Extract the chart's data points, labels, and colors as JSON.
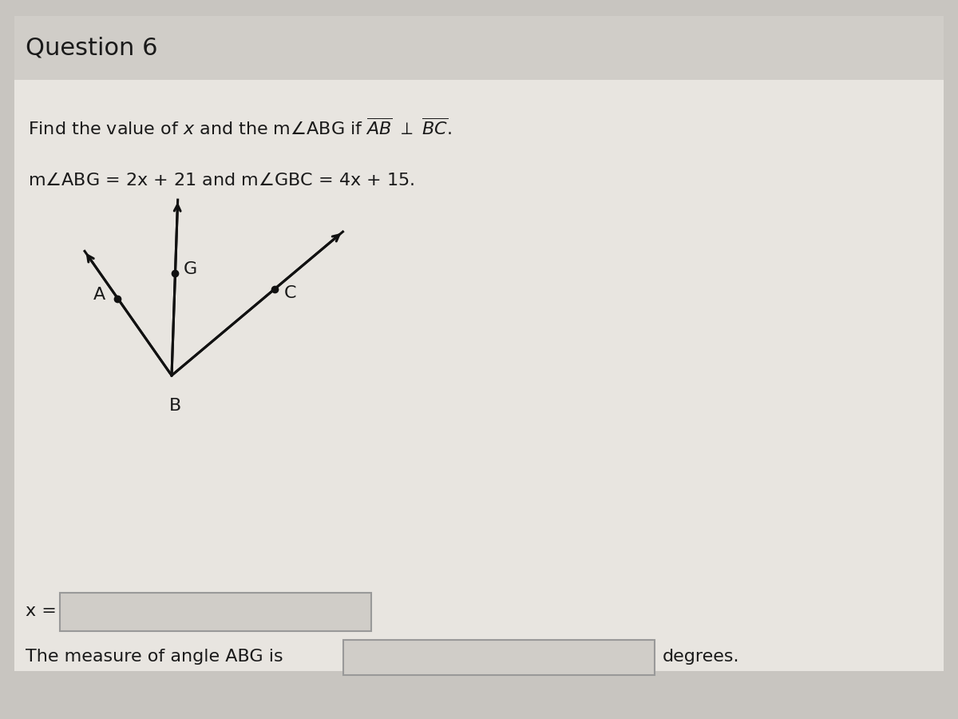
{
  "title": "Question 6",
  "line1_math": "Find the value of $x$ and the m$\\angle$ABG if $\\overline{AB}$ $\\perp$ $\\overline{BC}$.",
  "line2_math": "m$\\angle$ABG = 2x + 21 and m$\\angle$GBC = 4x + 15.",
  "label_A": "A",
  "label_B": "B",
  "label_G": "G",
  "label_C": "C",
  "x_label": "x =",
  "bottom_text": "The measure of angle ABG is",
  "bottom_end": "degrees.",
  "bg_color": "#c8c5c0",
  "content_bg": "#e8e5e0",
  "title_bg": "#d0cdc8",
  "text_color": "#1a1a1a",
  "diagram_color": "#111111",
  "input_box_color": "#d0cdc8",
  "input_box_edge": "#999999"
}
